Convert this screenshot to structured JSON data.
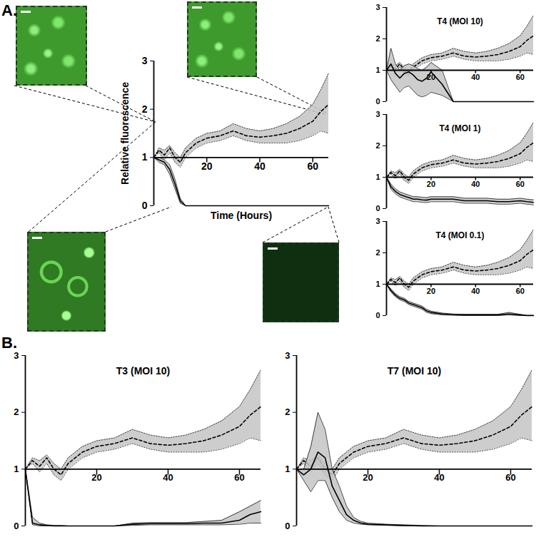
{
  "panel_labels": [
    "A.",
    "B."
  ],
  "chart_data": [
    {
      "type": "line",
      "ylabel": "Relative fluorescence",
      "xlabel": "Time (Hours)",
      "x": [
        0,
        2,
        4,
        6,
        8,
        10,
        12,
        14,
        16,
        18,
        20,
        25,
        30,
        35,
        40,
        45,
        50,
        55,
        60,
        63,
        66
      ],
      "xlim": [
        0,
        66
      ],
      "xticks": [
        20,
        40,
        60
      ],
      "ylim": [
        0,
        3
      ],
      "yticks": [
        0,
        1,
        2,
        3
      ],
      "series": [
        {
          "line_style": "dashed",
          "color": "#000000",
          "values": [
            1,
            1.15,
            1.05,
            1.2,
            1.0,
            0.9,
            1.1,
            1.2,
            1.3,
            1.35,
            1.4,
            1.45,
            1.55,
            1.45,
            1.42,
            1.45,
            1.5,
            1.6,
            1.75,
            1.95,
            2.1
          ],
          "lower": [
            1,
            1.1,
            0.95,
            1.1,
            0.9,
            0.8,
            1.0,
            1.1,
            1.2,
            1.25,
            1.3,
            1.35,
            1.45,
            1.35,
            1.3,
            1.3,
            1.3,
            1.35,
            1.45,
            1.55,
            1.5
          ],
          "upper": [
            1,
            1.2,
            1.15,
            1.25,
            1.1,
            1.0,
            1.2,
            1.3,
            1.4,
            1.45,
            1.5,
            1.55,
            1.7,
            1.6,
            1.55,
            1.6,
            1.7,
            1.85,
            2.1,
            2.4,
            2.75
          ]
        },
        {
          "line_style": "solid",
          "color": "#000000",
          "values": [
            1,
            0.95,
            0.9,
            0.75,
            0.45,
            0.1,
            0,
            0,
            0,
            0,
            0,
            0,
            0,
            0,
            0,
            0,
            0,
            0,
            0,
            0,
            0
          ],
          "lower": [
            1,
            0.9,
            0.85,
            0.65,
            0.35,
            0.05,
            0,
            0,
            0,
            0,
            0,
            0,
            0,
            0,
            0,
            0,
            0,
            0,
            0,
            0,
            0
          ],
          "upper": [
            1,
            1.0,
            0.95,
            0.85,
            0.55,
            0.15,
            0,
            0,
            0,
            0,
            0,
            0,
            0,
            0,
            0,
            0,
            0,
            0,
            0,
            0,
            0
          ]
        }
      ]
    },
    {
      "type": "line",
      "title": "T4 (MOI 10)",
      "x": [
        0,
        2,
        4,
        6,
        8,
        10,
        12,
        14,
        16,
        18,
        20,
        25,
        30,
        35,
        40,
        45,
        50,
        55,
        60,
        63,
        66
      ],
      "xlim": [
        0,
        66
      ],
      "xticks": [
        20,
        40,
        60
      ],
      "ylim": [
        0,
        3
      ],
      "yticks": [
        0,
        1,
        2,
        3
      ],
      "series": [
        {
          "line_style": "dashed",
          "color": "#000000",
          "values": [
            1,
            1.15,
            1.05,
            1.2,
            1.0,
            0.9,
            1.1,
            1.2,
            1.3,
            1.35,
            1.4,
            1.45,
            1.55,
            1.45,
            1.42,
            1.45,
            1.5,
            1.6,
            1.75,
            1.95,
            2.1
          ],
          "lower": [
            1,
            1.1,
            0.95,
            1.1,
            0.9,
            0.8,
            1.0,
            1.1,
            1.2,
            1.25,
            1.3,
            1.35,
            1.45,
            1.35,
            1.3,
            1.3,
            1.3,
            1.35,
            1.45,
            1.55,
            1.5
          ],
          "upper": [
            1,
            1.2,
            1.15,
            1.25,
            1.1,
            1.0,
            1.2,
            1.3,
            1.4,
            1.45,
            1.5,
            1.55,
            1.7,
            1.6,
            1.55,
            1.6,
            1.7,
            1.85,
            2.1,
            2.4,
            2.75
          ]
        },
        {
          "line_style": "solid",
          "color": "#000000",
          "values": [
            1,
            1.2,
            0.9,
            0.75,
            0.9,
            0.95,
            0.85,
            0.7,
            0.65,
            0.75,
            0.95,
            0.55,
            0,
            0,
            0,
            0,
            0,
            0,
            0,
            0,
            0
          ],
          "lower": [
            1,
            0.7,
            0.5,
            0.3,
            0.45,
            0.5,
            0.35,
            0.2,
            0.15,
            0.2,
            0.3,
            0.2,
            0,
            0,
            0,
            0,
            0,
            0,
            0,
            0,
            0
          ],
          "upper": [
            1,
            1.7,
            1.2,
            1.0,
            1.15,
            1.2,
            1.15,
            1.05,
            1.0,
            1.1,
            1.25,
            1.0,
            0,
            0,
            0,
            0,
            0,
            0,
            0,
            0,
            0
          ]
        }
      ]
    },
    {
      "type": "line",
      "title": "T4 (MOI 1)",
      "x": [
        0,
        2,
        4,
        6,
        8,
        10,
        12,
        14,
        16,
        18,
        20,
        25,
        30,
        35,
        40,
        45,
        50,
        55,
        60,
        63,
        66
      ],
      "xlim": [
        0,
        66
      ],
      "xticks": [
        20,
        40,
        60
      ],
      "ylim": [
        0,
        3
      ],
      "yticks": [
        0,
        1,
        2,
        3
      ],
      "series": [
        {
          "line_style": "dashed",
          "color": "#000000",
          "values": [
            1,
            1.15,
            1.05,
            1.2,
            1.0,
            0.9,
            1.1,
            1.2,
            1.3,
            1.35,
            1.4,
            1.45,
            1.55,
            1.45,
            1.42,
            1.45,
            1.5,
            1.6,
            1.75,
            1.95,
            2.1
          ],
          "lower": [
            1,
            1.1,
            0.95,
            1.1,
            0.9,
            0.8,
            1.0,
            1.1,
            1.2,
            1.25,
            1.3,
            1.35,
            1.45,
            1.35,
            1.3,
            1.3,
            1.3,
            1.35,
            1.45,
            1.55,
            1.5
          ],
          "upper": [
            1,
            1.2,
            1.15,
            1.25,
            1.1,
            1.0,
            1.2,
            1.3,
            1.4,
            1.45,
            1.5,
            1.55,
            1.7,
            1.6,
            1.55,
            1.6,
            1.7,
            1.85,
            2.1,
            2.4,
            2.75
          ]
        },
        {
          "line_style": "solid",
          "color": "#000000",
          "values": [
            1,
            0.7,
            0.55,
            0.45,
            0.4,
            0.35,
            0.3,
            0.3,
            0.28,
            0.27,
            0.3,
            0.3,
            0.3,
            0.25,
            0.25,
            0.25,
            0.22,
            0.22,
            0.25,
            0.22,
            0.2
          ],
          "lower": [
            1,
            0.62,
            0.47,
            0.37,
            0.32,
            0.27,
            0.22,
            0.22,
            0.2,
            0.19,
            0.22,
            0.22,
            0.22,
            0.17,
            0.17,
            0.17,
            0.14,
            0.14,
            0.17,
            0.14,
            0.12
          ],
          "upper": [
            1,
            0.78,
            0.63,
            0.53,
            0.48,
            0.43,
            0.38,
            0.38,
            0.36,
            0.35,
            0.38,
            0.38,
            0.38,
            0.33,
            0.33,
            0.33,
            0.3,
            0.3,
            0.33,
            0.3,
            0.28
          ]
        }
      ]
    },
    {
      "type": "line",
      "title": "T4 (MOI 0.1)",
      "x": [
        0,
        2,
        4,
        6,
        8,
        10,
        12,
        14,
        16,
        18,
        20,
        25,
        30,
        35,
        40,
        45,
        50,
        55,
        60,
        63,
        66
      ],
      "xlim": [
        0,
        66
      ],
      "xticks": [
        20,
        40,
        60
      ],
      "ylim": [
        0,
        3
      ],
      "yticks": [
        0,
        1,
        2,
        3
      ],
      "series": [
        {
          "line_style": "dashed",
          "color": "#000000",
          "values": [
            1,
            1.15,
            1.05,
            1.2,
            1.0,
            0.9,
            1.1,
            1.2,
            1.3,
            1.35,
            1.4,
            1.45,
            1.55,
            1.45,
            1.42,
            1.45,
            1.5,
            1.6,
            1.75,
            1.95,
            2.1
          ],
          "lower": [
            1,
            1.1,
            0.95,
            1.1,
            0.9,
            0.8,
            1.0,
            1.1,
            1.2,
            1.25,
            1.3,
            1.35,
            1.45,
            1.35,
            1.3,
            1.3,
            1.3,
            1.35,
            1.45,
            1.55,
            1.5
          ],
          "upper": [
            1,
            1.2,
            1.15,
            1.25,
            1.1,
            1.0,
            1.2,
            1.3,
            1.4,
            1.45,
            1.5,
            1.55,
            1.7,
            1.6,
            1.55,
            1.6,
            1.7,
            1.85,
            2.1,
            2.4,
            2.75
          ]
        },
        {
          "line_style": "solid",
          "color": "#000000",
          "values": [
            1,
            0.8,
            0.65,
            0.55,
            0.5,
            0.4,
            0.35,
            0.3,
            0.25,
            0.15,
            0.1,
            0.05,
            0.03,
            0.02,
            0.02,
            0.02,
            0.02,
            0.05,
            0.02,
            0,
            0
          ],
          "lower": [
            1,
            0.75,
            0.6,
            0.5,
            0.45,
            0.35,
            0.3,
            0.25,
            0.2,
            0.1,
            0.06,
            0.02,
            0.01,
            0,
            0,
            0,
            0,
            0.02,
            0,
            0,
            0
          ],
          "upper": [
            1,
            0.85,
            0.7,
            0.6,
            0.55,
            0.45,
            0.4,
            0.35,
            0.3,
            0.2,
            0.14,
            0.08,
            0.05,
            0.04,
            0.04,
            0.04,
            0.04,
            0.1,
            0.04,
            0.01,
            0.01
          ]
        }
      ]
    },
    {
      "type": "line",
      "title": "T3 (MOI 10)",
      "x": [
        0,
        2,
        4,
        6,
        8,
        10,
        12,
        14,
        16,
        18,
        20,
        25,
        30,
        35,
        40,
        45,
        50,
        55,
        60,
        63,
        66
      ],
      "xlim": [
        0,
        66
      ],
      "xticks": [
        20,
        40,
        60
      ],
      "ylim": [
        0,
        3
      ],
      "yticks": [
        0,
        1,
        2,
        3
      ],
      "series": [
        {
          "line_style": "dashed",
          "color": "#000000",
          "values": [
            1,
            1.15,
            1.05,
            1.2,
            1.0,
            0.9,
            1.1,
            1.2,
            1.3,
            1.35,
            1.4,
            1.45,
            1.55,
            1.45,
            1.42,
            1.45,
            1.5,
            1.6,
            1.75,
            1.95,
            2.1
          ],
          "lower": [
            1,
            1.1,
            0.95,
            1.1,
            0.9,
            0.8,
            1.0,
            1.1,
            1.2,
            1.25,
            1.3,
            1.35,
            1.45,
            1.35,
            1.3,
            1.3,
            1.3,
            1.35,
            1.45,
            1.55,
            1.5
          ],
          "upper": [
            1,
            1.2,
            1.15,
            1.25,
            1.1,
            1.0,
            1.2,
            1.3,
            1.4,
            1.45,
            1.5,
            1.55,
            1.7,
            1.6,
            1.55,
            1.6,
            1.7,
            1.85,
            2.1,
            2.4,
            2.75
          ]
        },
        {
          "line_style": "solid",
          "color": "#000000",
          "values": [
            1,
            0.05,
            0.02,
            0.01,
            0,
            0,
            0,
            0,
            0,
            0,
            0,
            0,
            0.03,
            0.04,
            0.04,
            0.04,
            0.05,
            0.05,
            0.1,
            0.2,
            0.25
          ],
          "lower": [
            1,
            0.02,
            0,
            0,
            0,
            0,
            0,
            0,
            0,
            0,
            0,
            0,
            0.01,
            0.02,
            0.02,
            0.02,
            0.02,
            0.02,
            0.03,
            0.05,
            0.05
          ],
          "upper": [
            1,
            0.15,
            0.05,
            0.02,
            0.01,
            0.01,
            0,
            0,
            0,
            0,
            0,
            0,
            0.05,
            0.06,
            0.06,
            0.06,
            0.08,
            0.1,
            0.25,
            0.35,
            0.45
          ]
        }
      ]
    },
    {
      "type": "line",
      "title": "T7 (MOI 10)",
      "x": [
        0,
        2,
        4,
        6,
        8,
        10,
        12,
        14,
        16,
        18,
        20,
        25,
        30,
        35,
        40,
        45,
        50,
        55,
        60,
        63,
        66
      ],
      "xlim": [
        0,
        66
      ],
      "xticks": [
        20,
        40,
        60
      ],
      "ylim": [
        0,
        3
      ],
      "yticks": [
        0,
        1,
        2,
        3
      ],
      "series": [
        {
          "line_style": "dashed",
          "color": "#000000",
          "values": [
            1,
            1.15,
            1.05,
            1.2,
            1.0,
            0.9,
            1.1,
            1.2,
            1.3,
            1.35,
            1.4,
            1.45,
            1.55,
            1.45,
            1.42,
            1.45,
            1.5,
            1.6,
            1.75,
            1.95,
            2.1
          ],
          "lower": [
            1,
            1.1,
            0.95,
            1.1,
            0.9,
            0.8,
            1.0,
            1.1,
            1.2,
            1.25,
            1.3,
            1.35,
            1.45,
            1.35,
            1.3,
            1.3,
            1.3,
            1.35,
            1.45,
            1.55,
            1.5
          ],
          "upper": [
            1,
            1.2,
            1.15,
            1.25,
            1.1,
            1.0,
            1.2,
            1.3,
            1.4,
            1.45,
            1.5,
            1.55,
            1.7,
            1.6,
            1.55,
            1.6,
            1.7,
            1.85,
            2.1,
            2.4,
            2.75
          ]
        },
        {
          "line_style": "solid",
          "color": "#000000",
          "values": [
            1,
            0.9,
            1.0,
            1.3,
            1.2,
            0.7,
            0.45,
            0.2,
            0.1,
            0.05,
            0.03,
            0.02,
            0.01,
            0,
            0,
            0,
            0,
            0,
            0,
            0,
            0
          ],
          "lower": [
            1,
            0.8,
            0.6,
            0.8,
            0.8,
            0.5,
            0.25,
            0.1,
            0.05,
            0.03,
            0.02,
            0.01,
            0,
            0,
            0,
            0,
            0,
            0,
            0,
            0,
            0
          ],
          "upper": [
            1,
            1.0,
            1.4,
            2.0,
            1.7,
            1.0,
            0.7,
            0.35,
            0.15,
            0.08,
            0.05,
            0.03,
            0.02,
            0.01,
            0,
            0,
            0,
            0,
            0,
            0,
            0
          ]
        }
      ]
    }
  ]
}
